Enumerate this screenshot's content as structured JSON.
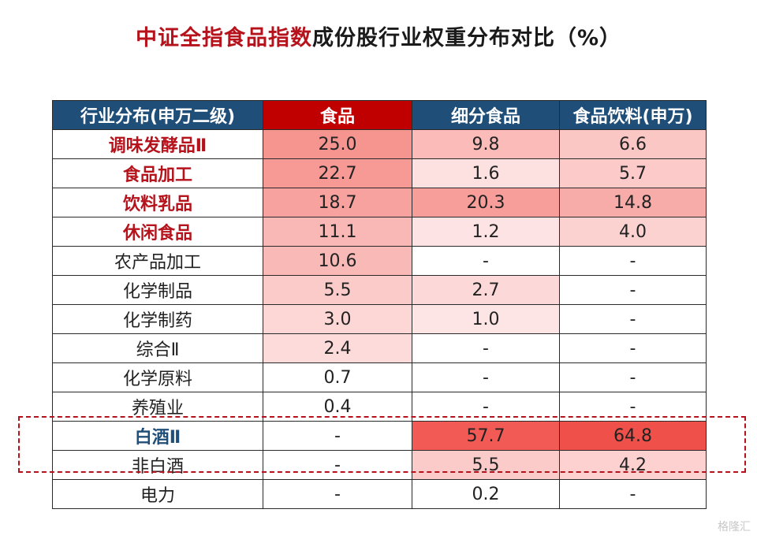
{
  "title": {
    "highlight": "中证全指食品指数",
    "rest": "成份股行业权重分布对比（%）"
  },
  "watermark": "格隆汇",
  "colors": {
    "header_blue": "#1f4e79",
    "header_red": "#c00000",
    "accent_red": "#b5121b",
    "heat_max": "#f0504a"
  },
  "chart_data": {
    "type": "table",
    "columns": [
      "行业分布(申万二级)",
      "食品",
      "细分食品",
      "食品饮料(申万)"
    ],
    "rows": [
      {
        "industry": "调味发酵品Ⅱ",
        "style": "red",
        "values": [
          "25.0",
          "9.8",
          "6.6"
        ]
      },
      {
        "industry": "食品加工",
        "style": "red",
        "values": [
          "22.7",
          "1.6",
          "5.7"
        ]
      },
      {
        "industry": "饮料乳品",
        "style": "red",
        "values": [
          "18.7",
          "20.3",
          "14.8"
        ]
      },
      {
        "industry": "休闲食品",
        "style": "red",
        "values": [
          "11.1",
          "1.2",
          "4.0"
        ]
      },
      {
        "industry": "农产品加工",
        "style": "normal",
        "values": [
          "10.6",
          "-",
          "-"
        ]
      },
      {
        "industry": "化学制品",
        "style": "normal",
        "values": [
          "5.5",
          "2.7",
          "-"
        ]
      },
      {
        "industry": "化学制药",
        "style": "normal",
        "values": [
          "3.0",
          "1.0",
          "-"
        ]
      },
      {
        "industry": "综合Ⅱ",
        "style": "normal",
        "values": [
          "2.4",
          "-",
          "-"
        ]
      },
      {
        "industry": "化学原料",
        "style": "normal",
        "values": [
          "0.7",
          "-",
          "-"
        ]
      },
      {
        "industry": "养殖业",
        "style": "normal",
        "values": [
          "0.4",
          "-",
          "-"
        ]
      },
      {
        "industry": "白酒Ⅱ",
        "style": "blue",
        "values": [
          "-",
          "57.7",
          "64.8"
        ]
      },
      {
        "industry": "非白酒",
        "style": "normal",
        "values": [
          "-",
          "5.5",
          "4.2"
        ]
      },
      {
        "industry": "电力",
        "style": "normal",
        "values": [
          "-",
          "0.2",
          "-"
        ]
      }
    ],
    "highlighted_row": "白酒Ⅱ"
  }
}
